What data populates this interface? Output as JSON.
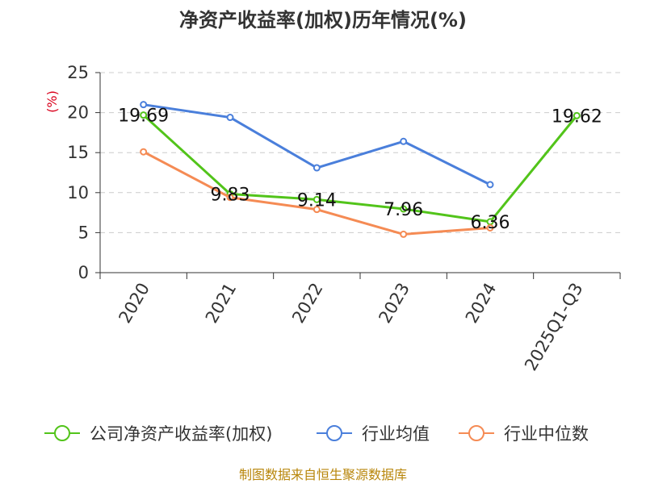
{
  "chart_data": {
    "type": "line",
    "title": "净资产收益率(加权)历年情况(%)",
    "ylabel": "(%)",
    "xlabel": "",
    "categories": [
      "2020",
      "2021",
      "2022",
      "2023",
      "2024",
      "2025Q1-Q3"
    ],
    "ylim": [
      0,
      25
    ],
    "yticks": [
      0,
      5,
      10,
      15,
      20,
      25
    ],
    "grid": true,
    "legend_position": "bottom",
    "series": [
      {
        "name": "公司净资产收益率(加权)",
        "color": "#52c41a",
        "values": [
          19.69,
          9.83,
          9.14,
          7.96,
          6.36,
          19.62
        ],
        "labels": [
          "19.69",
          "9.83",
          "9.14",
          "7.96",
          "6.36",
          "19.62"
        ]
      },
      {
        "name": "行业均值",
        "color": "#4a7fdb",
        "values": [
          21.0,
          19.4,
          13.1,
          16.4,
          11.0,
          null
        ]
      },
      {
        "name": "行业中位数",
        "color": "#f58b54",
        "values": [
          15.1,
          9.4,
          7.9,
          4.8,
          5.6,
          null
        ]
      }
    ],
    "source": "制图数据来自恒生聚源数据库"
  }
}
